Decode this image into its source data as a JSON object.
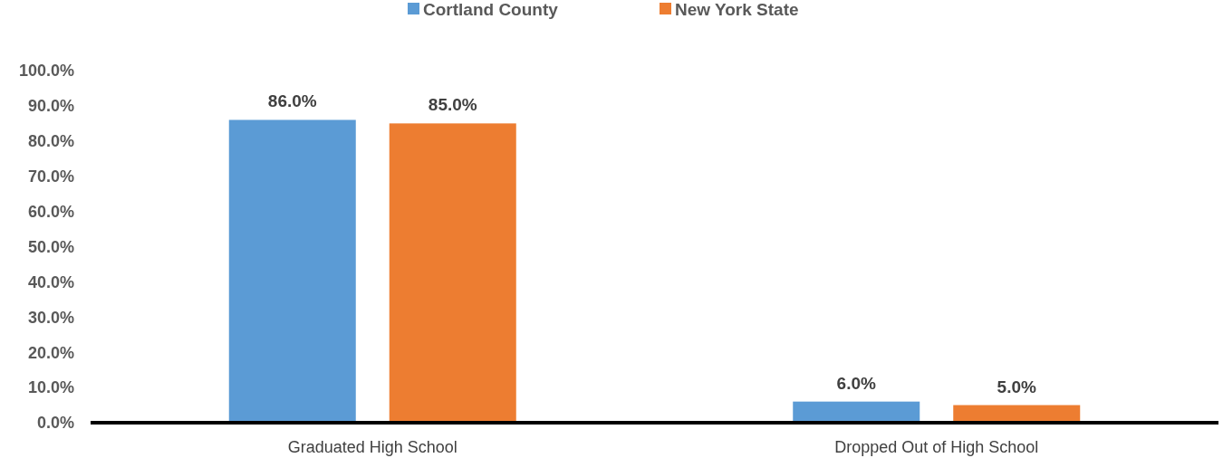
{
  "chart_data": {
    "type": "bar",
    "categories": [
      "Graduated High School",
      "Dropped Out of High School"
    ],
    "series": [
      {
        "name": "Cortland County",
        "color": "#5b9bd5",
        "values": [
          86,
          6
        ],
        "value_labels": [
          "86.0%",
          "6.0%"
        ]
      },
      {
        "name": "New York State",
        "color": "#ed7d31",
        "values": [
          85,
          5
        ],
        "value_labels": [
          "85.0%",
          "5.0%"
        ]
      }
    ],
    "ylim": [
      0,
      100
    ],
    "yticks": [
      {
        "value": 0,
        "label": "0.0%"
      },
      {
        "value": 10,
        "label": "10.0%"
      },
      {
        "value": 20,
        "label": "20.0%"
      },
      {
        "value": 30,
        "label": "30.0%"
      },
      {
        "value": 40,
        "label": "40.0%"
      },
      {
        "value": 50,
        "label": "50.0%"
      },
      {
        "value": 60,
        "label": "60.0%"
      },
      {
        "value": 70,
        "label": "70.0%"
      },
      {
        "value": 80,
        "label": "80.0%"
      },
      {
        "value": 90,
        "label": "90.0%"
      },
      {
        "value": 100,
        "label": "100.0%"
      }
    ],
    "grid": false,
    "legend": "top"
  }
}
